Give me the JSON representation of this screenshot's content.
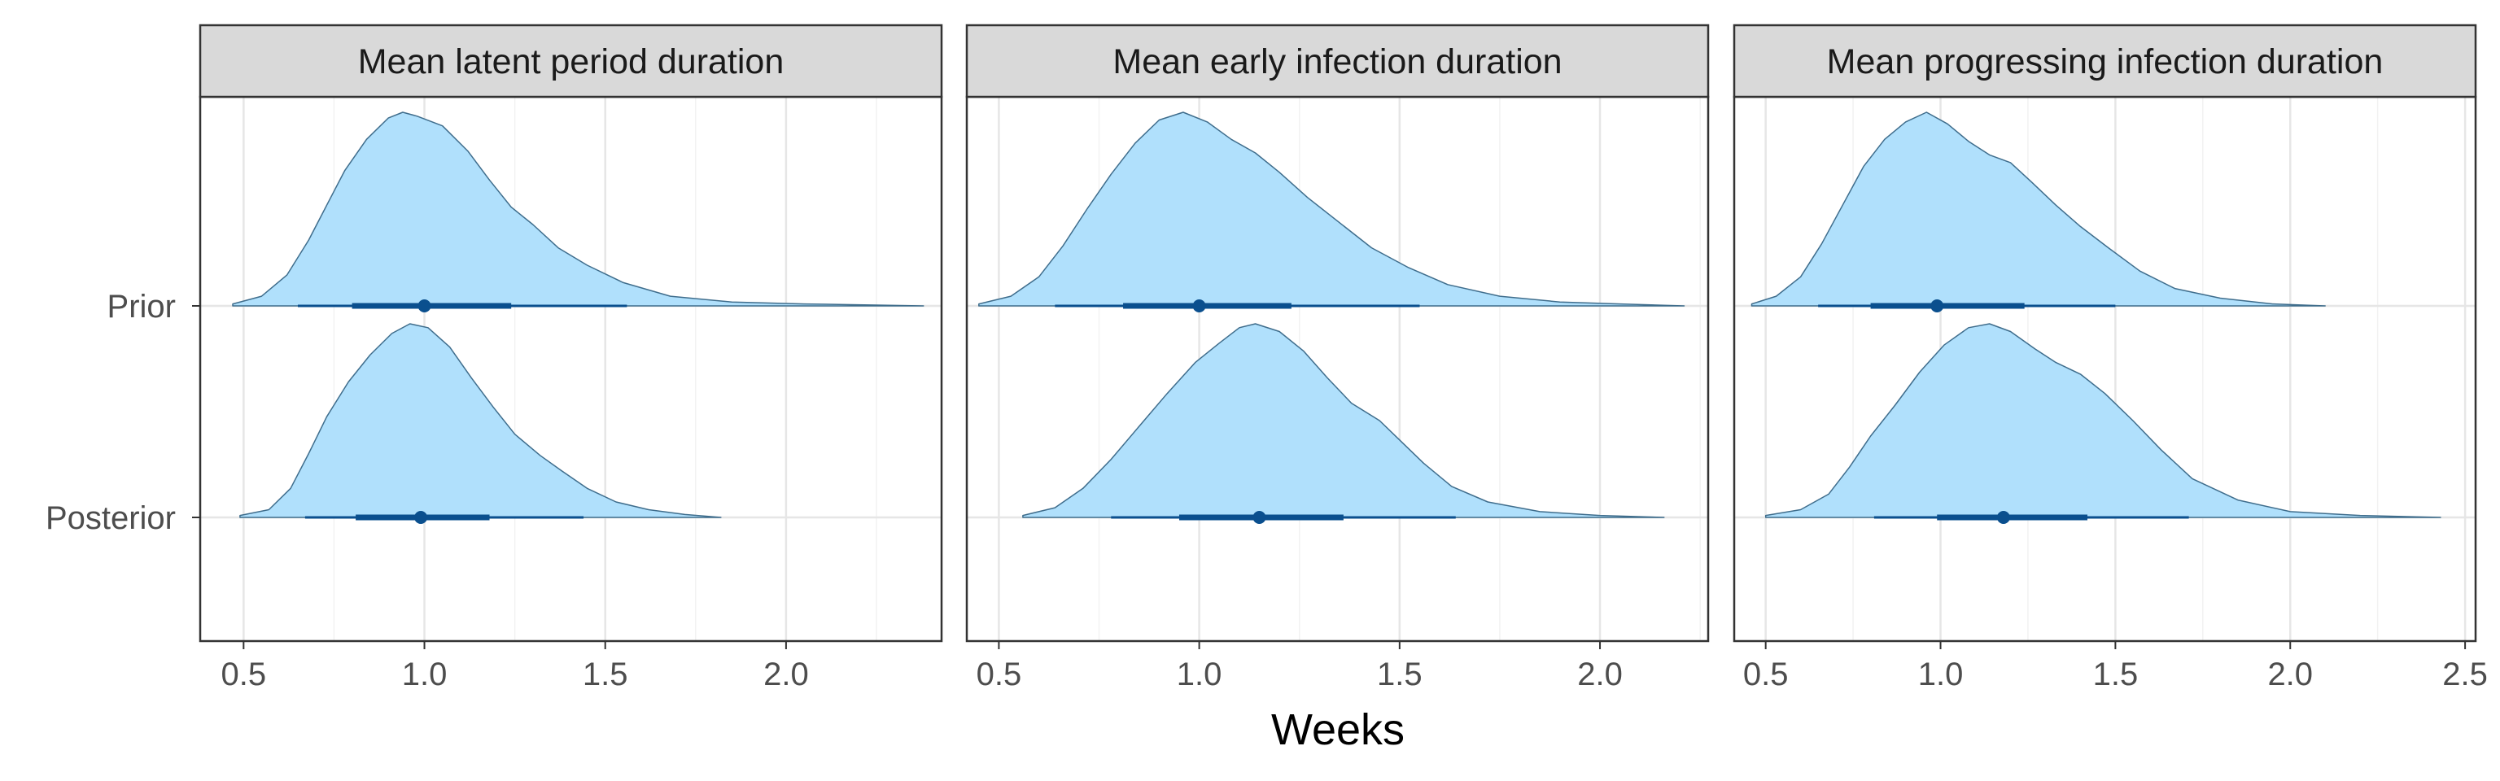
{
  "xlabel": "Weeks",
  "row_labels": [
    "Prior",
    "Posterior"
  ],
  "colors": {
    "density_fill": "#b0e0fc",
    "density_line": "#3f6d8c",
    "interval": "#0a4f8e",
    "strip_bg": "#d9d9d9",
    "grid_major": "#e6e6e6",
    "grid_minor": "#f2f2f2",
    "frame": "#333333"
  },
  "chart_data": [
    {
      "type": "area",
      "title": "Mean latent period duration",
      "xlim": [
        0.38,
        2.43
      ],
      "xticks": [
        0.5,
        1.0,
        1.5,
        2.0
      ],
      "xtick_labels": [
        "0.5",
        "1.0",
        "1.5",
        "2.0"
      ],
      "series": [
        {
          "name": "Prior",
          "median": 1.0,
          "interval_66": [
            0.8,
            1.24
          ],
          "interval_95": [
            0.65,
            1.56
          ],
          "density_x": [
            0.47,
            0.55,
            0.62,
            0.68,
            0.73,
            0.78,
            0.84,
            0.9,
            0.94,
            0.98,
            1.05,
            1.12,
            1.18,
            1.24,
            1.3,
            1.37,
            1.45,
            1.55,
            1.68,
            1.85,
            2.05,
            2.25,
            2.38
          ],
          "density_y": [
            0.01,
            0.05,
            0.16,
            0.34,
            0.52,
            0.7,
            0.86,
            0.97,
            1.0,
            0.98,
            0.93,
            0.8,
            0.65,
            0.51,
            0.42,
            0.3,
            0.21,
            0.12,
            0.05,
            0.02,
            0.01,
            0.004,
            0.0
          ]
        },
        {
          "name": "Posterior",
          "median": 0.99,
          "interval_66": [
            0.81,
            1.18
          ],
          "interval_95": [
            0.67,
            1.44
          ],
          "density_x": [
            0.49,
            0.57,
            0.63,
            0.68,
            0.73,
            0.79,
            0.85,
            0.91,
            0.96,
            1.01,
            1.07,
            1.13,
            1.19,
            1.25,
            1.32,
            1.38,
            1.45,
            1.53,
            1.62,
            1.72,
            1.82
          ],
          "density_y": [
            0.01,
            0.04,
            0.15,
            0.33,
            0.52,
            0.7,
            0.84,
            0.95,
            1.0,
            0.98,
            0.88,
            0.72,
            0.57,
            0.43,
            0.32,
            0.24,
            0.15,
            0.08,
            0.04,
            0.015,
            0.0
          ]
        }
      ]
    },
    {
      "type": "area",
      "title": "Mean early infection duration",
      "xlim": [
        0.42,
        2.27
      ],
      "xticks": [
        0.5,
        1.0,
        1.5,
        2.0
      ],
      "xtick_labels": [
        "0.5",
        "1.0",
        "1.5",
        "2.0"
      ],
      "series": [
        {
          "name": "Prior",
          "median": 1.0,
          "interval_66": [
            0.81,
            1.23
          ],
          "interval_95": [
            0.64,
            1.55
          ],
          "density_x": [
            0.45,
            0.53,
            0.6,
            0.66,
            0.72,
            0.78,
            0.84,
            0.9,
            0.96,
            1.02,
            1.08,
            1.14,
            1.2,
            1.27,
            1.35,
            1.43,
            1.52,
            1.62,
            1.75,
            1.9,
            2.05,
            2.21
          ],
          "density_y": [
            0.01,
            0.05,
            0.15,
            0.31,
            0.5,
            0.68,
            0.84,
            0.96,
            1.0,
            0.95,
            0.86,
            0.79,
            0.69,
            0.56,
            0.43,
            0.3,
            0.2,
            0.11,
            0.05,
            0.02,
            0.01,
            0.0
          ]
        },
        {
          "name": "Posterior",
          "median": 1.15,
          "interval_66": [
            0.95,
            1.36
          ],
          "interval_95": [
            0.78,
            1.64
          ],
          "density_x": [
            0.56,
            0.64,
            0.71,
            0.78,
            0.85,
            0.92,
            0.99,
            1.05,
            1.1,
            1.14,
            1.2,
            1.26,
            1.32,
            1.38,
            1.45,
            1.5,
            1.56,
            1.63,
            1.72,
            1.85,
            2.0,
            2.16
          ],
          "density_y": [
            0.01,
            0.05,
            0.15,
            0.3,
            0.47,
            0.64,
            0.8,
            0.9,
            0.98,
            1.0,
            0.96,
            0.86,
            0.72,
            0.59,
            0.5,
            0.4,
            0.28,
            0.16,
            0.08,
            0.03,
            0.01,
            0.0
          ]
        }
      ]
    },
    {
      "type": "area",
      "title": "Mean progressing infection duration",
      "xlim": [
        0.41,
        2.53
      ],
      "xticks": [
        0.5,
        1.0,
        1.5,
        2.0,
        2.5
      ],
      "xtick_labels": [
        "0.5",
        "1.0",
        "1.5",
        "2.0",
        "2.5"
      ],
      "series": [
        {
          "name": "Prior",
          "median": 0.99,
          "interval_66": [
            0.8,
            1.24
          ],
          "interval_95": [
            0.65,
            1.5
          ],
          "density_x": [
            0.46,
            0.53,
            0.6,
            0.66,
            0.72,
            0.78,
            0.84,
            0.9,
            0.96,
            1.02,
            1.08,
            1.14,
            1.2,
            1.26,
            1.33,
            1.4,
            1.48,
            1.57,
            1.67,
            1.8,
            1.95,
            2.1
          ],
          "density_y": [
            0.01,
            0.05,
            0.15,
            0.32,
            0.52,
            0.72,
            0.86,
            0.95,
            1.0,
            0.94,
            0.85,
            0.78,
            0.74,
            0.64,
            0.52,
            0.41,
            0.3,
            0.18,
            0.09,
            0.04,
            0.01,
            0.0
          ]
        },
        {
          "name": "Posterior",
          "median": 1.18,
          "interval_66": [
            0.99,
            1.42
          ],
          "interval_95": [
            0.81,
            1.71
          ],
          "density_x": [
            0.5,
            0.6,
            0.68,
            0.74,
            0.8,
            0.87,
            0.94,
            1.01,
            1.08,
            1.14,
            1.2,
            1.27,
            1.33,
            1.4,
            1.47,
            1.55,
            1.63,
            1.72,
            1.85,
            2.0,
            2.2,
            2.43
          ],
          "density_y": [
            0.01,
            0.04,
            0.12,
            0.26,
            0.42,
            0.58,
            0.75,
            0.89,
            0.98,
            1.0,
            0.96,
            0.87,
            0.8,
            0.74,
            0.64,
            0.5,
            0.35,
            0.2,
            0.09,
            0.03,
            0.01,
            0.0
          ]
        }
      ]
    }
  ]
}
